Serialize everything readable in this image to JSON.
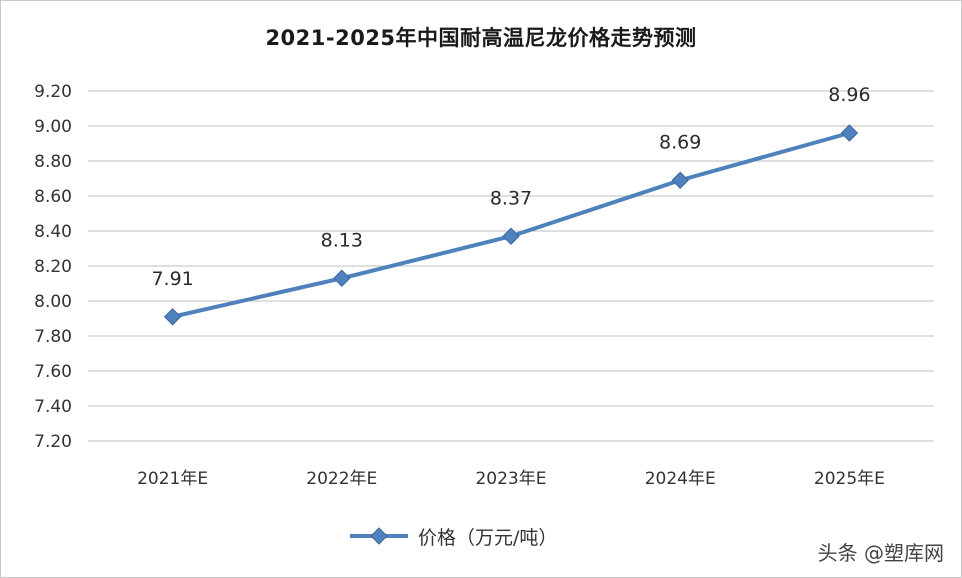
{
  "chart_data": {
    "type": "line",
    "title": "2021-2025年中国耐高温尼龙价格走势预测",
    "categories": [
      "2021年E",
      "2022年E",
      "2023年E",
      "2024年E",
      "2025年E"
    ],
    "series": [
      {
        "name": "价格（万元/吨）",
        "values": [
          7.91,
          8.13,
          8.37,
          8.69,
          8.96
        ],
        "color": "#4f81bd"
      }
    ],
    "data_labels": [
      "7.91",
      "8.13",
      "8.37",
      "8.69",
      "8.96"
    ],
    "yticks": [
      "7.20",
      "7.40",
      "7.60",
      "7.80",
      "8.00",
      "8.20",
      "8.40",
      "8.60",
      "8.80",
      "9.00",
      "9.20"
    ],
    "ylim": [
      7.2,
      9.2
    ],
    "grid": true,
    "legend_position": "bottom",
    "marker": "diamond",
    "gridline_color": "#bfbfbf"
  },
  "watermark": "头条 @塑库网"
}
